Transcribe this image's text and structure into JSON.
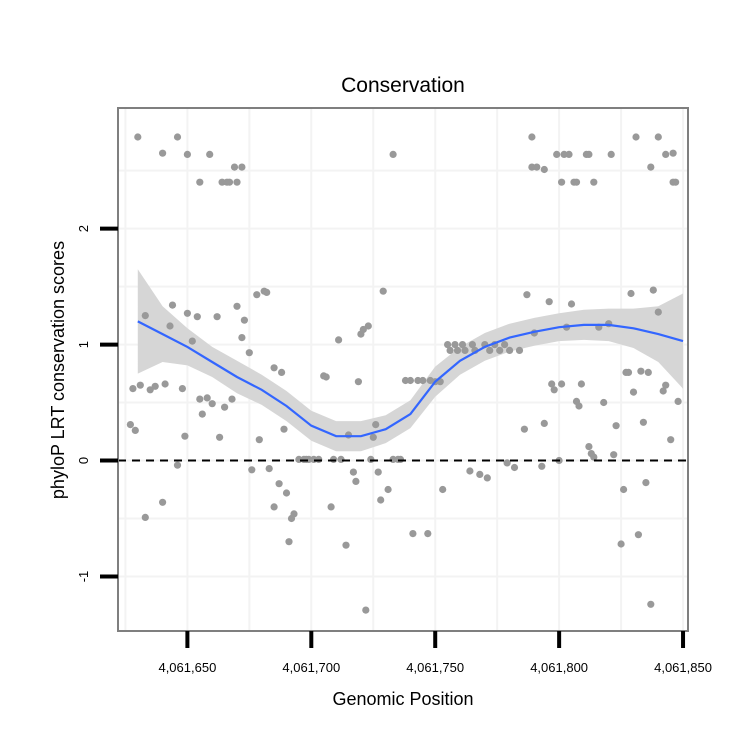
{
  "chart_data": {
    "type": "scatter",
    "title": "Conservation",
    "xlabel": "Genomic Position",
    "ylabel": "phyloP LRT conservation scores",
    "xlim": [
      4061622,
      4061852
    ],
    "ylim": [
      -1.47,
      3.04
    ],
    "x_ticks": [
      {
        "value": 4061650,
        "label": "4,061,650"
      },
      {
        "value": 4061700,
        "label": "4,061,700"
      },
      {
        "value": 4061750,
        "label": "4,061,750"
      },
      {
        "value": 4061800,
        "label": "4,061,800"
      },
      {
        "value": 4061850,
        "label": "4,061,850"
      }
    ],
    "y_ticks": [
      {
        "value": -1,
        "label": "-1"
      },
      {
        "value": 0,
        "label": "0"
      },
      {
        "value": 1,
        "label": "1"
      },
      {
        "value": 2,
        "label": "2"
      }
    ],
    "reference_line": {
      "y": 0,
      "style": "dashed"
    },
    "grid": true,
    "colors": {
      "points": "#999999",
      "smooth": "#3366ff",
      "ribbon": "#d6d6d6",
      "panel_border": "#7f7f7f",
      "grid": "#f3f3f3"
    },
    "points": [
      [
        4061630,
        2.79
      ],
      [
        4061640,
        2.65
      ],
      [
        4061646,
        2.79
      ],
      [
        4061650,
        2.64
      ],
      [
        4061655,
        2.4
      ],
      [
        4061659,
        2.64
      ],
      [
        4061664,
        2.4
      ],
      [
        4061666,
        2.4
      ],
      [
        4061667,
        2.4
      ],
      [
        4061669,
        2.53
      ],
      [
        4061670,
        2.4
      ],
      [
        4061672,
        2.53
      ],
      [
        4061733,
        2.64
      ],
      [
        4061789,
        2.79
      ],
      [
        4061789,
        2.53
      ],
      [
        4061791,
        2.53
      ],
      [
        4061794,
        2.51
      ],
      [
        4061799,
        2.64
      ],
      [
        4061801,
        2.4
      ],
      [
        4061802,
        2.64
      ],
      [
        4061804,
        2.64
      ],
      [
        4061806,
        2.4
      ],
      [
        4061807,
        2.4
      ],
      [
        4061811,
        2.64
      ],
      [
        4061812,
        2.64
      ],
      [
        4061814,
        2.4
      ],
      [
        4061821,
        2.64
      ],
      [
        4061831,
        2.79
      ],
      [
        4061837,
        2.53
      ],
      [
        4061840,
        2.79
      ],
      [
        4061843,
        2.64
      ],
      [
        4061846,
        2.4
      ],
      [
        4061847,
        2.4
      ],
      [
        4061627,
        0.31
      ],
      [
        4061628,
        0.62
      ],
      [
        4061629,
        0.26
      ],
      [
        4061631,
        0.65
      ],
      [
        4061633,
        -0.49
      ],
      [
        4061633,
        1.25
      ],
      [
        4061635,
        0.61
      ],
      [
        4061637,
        0.64
      ],
      [
        4061640,
        -0.36
      ],
      [
        4061641,
        0.66
      ],
      [
        4061643,
        1.16
      ],
      [
        4061644,
        1.34
      ],
      [
        4061646,
        -0.04
      ],
      [
        4061648,
        0.62
      ],
      [
        4061649,
        0.21
      ],
      [
        4061650,
        1.27
      ],
      [
        4061652,
        1.03
      ],
      [
        4061654,
        1.24
      ],
      [
        4061655,
        0.53
      ],
      [
        4061656,
        0.4
      ],
      [
        4061658,
        0.54
      ],
      [
        4061660,
        0.49
      ],
      [
        4061662,
        1.24
      ],
      [
        4061663,
        0.2
      ],
      [
        4061665,
        0.46
      ],
      [
        4061668,
        0.53
      ],
      [
        4061670,
        1.33
      ],
      [
        4061672,
        1.06
      ],
      [
        4061673,
        1.21
      ],
      [
        4061675,
        0.93
      ],
      [
        4061676,
        -0.08
      ],
      [
        4061678,
        1.43
      ],
      [
        4061679,
        0.18
      ],
      [
        4061681,
        1.46
      ],
      [
        4061682,
        1.45
      ],
      [
        4061683,
        -0.07
      ],
      [
        4061685,
        -0.4
      ],
      [
        4061685,
        0.8
      ],
      [
        4061687,
        -0.2
      ],
      [
        4061688,
        0.76
      ],
      [
        4061689,
        0.27
      ],
      [
        4061690,
        -0.28
      ],
      [
        4061691,
        -0.7
      ],
      [
        4061692,
        -0.5
      ],
      [
        4061693,
        -0.46
      ],
      [
        4061695,
        0.01
      ],
      [
        4061697,
        0.01
      ],
      [
        4061698,
        0.01
      ],
      [
        4061699,
        0.01
      ],
      [
        4061701,
        0.01
      ],
      [
        4061703,
        0.01
      ],
      [
        4061705,
        0.73
      ],
      [
        4061706,
        0.72
      ],
      [
        4061708,
        -0.4
      ],
      [
        4061709,
        0.01
      ],
      [
        4061711,
        1.04
      ],
      [
        4061712,
        0.01
      ],
      [
        4061714,
        -0.73
      ],
      [
        4061715,
        0.22
      ],
      [
        4061717,
        -0.1
      ],
      [
        4061718,
        -0.18
      ],
      [
        4061719,
        0.68
      ],
      [
        4061720,
        1.09
      ],
      [
        4061721,
        1.13
      ],
      [
        4061722,
        -1.29
      ],
      [
        4061723,
        1.16
      ],
      [
        4061724,
        0.01
      ],
      [
        4061725,
        0.2
      ],
      [
        4061726,
        0.31
      ],
      [
        4061727,
        -0.1
      ],
      [
        4061728,
        -0.34
      ],
      [
        4061729,
        1.46
      ],
      [
        4061731,
        -0.25
      ],
      [
        4061733,
        0.01
      ],
      [
        4061735,
        0.01
      ],
      [
        4061736,
        0.01
      ],
      [
        4061738,
        0.69
      ],
      [
        4061740,
        0.69
      ],
      [
        4061741,
        -0.63
      ],
      [
        4061743,
        0.69
      ],
      [
        4061745,
        0.69
      ],
      [
        4061747,
        -0.63
      ],
      [
        4061748,
        0.69
      ],
      [
        4061750,
        0.68
      ],
      [
        4061752,
        0.68
      ],
      [
        4061753,
        -0.25
      ],
      [
        4061755,
        1.0
      ],
      [
        4061756,
        0.95
      ],
      [
        4061758,
        1.0
      ],
      [
        4061759,
        0.95
      ],
      [
        4061761,
        1.0
      ],
      [
        4061762,
        0.95
      ],
      [
        4061764,
        -0.09
      ],
      [
        4061765,
        1.0
      ],
      [
        4061766,
        0.95
      ],
      [
        4061768,
        -0.12
      ],
      [
        4061770,
        1.0
      ],
      [
        4061771,
        -0.15
      ],
      [
        4061772,
        0.95
      ],
      [
        4061774,
        1.0
      ],
      [
        4061776,
        0.95
      ],
      [
        4061778,
        1.0
      ],
      [
        4061779,
        -0.02
      ],
      [
        4061780,
        0.95
      ],
      [
        4061782,
        -0.06
      ],
      [
        4061784,
        0.95
      ],
      [
        4061786,
        0.27
      ],
      [
        4061787,
        1.43
      ],
      [
        4061790,
        1.1
      ],
      [
        4061793,
        -0.05
      ],
      [
        4061794,
        0.32
      ],
      [
        4061796,
        1.37
      ],
      [
        4061797,
        0.66
      ],
      [
        4061798,
        0.61
      ],
      [
        4061800,
        0.0
      ],
      [
        4061801,
        0.66
      ],
      [
        4061803,
        1.15
      ],
      [
        4061805,
        1.35
      ],
      [
        4061807,
        0.51
      ],
      [
        4061808,
        0.47
      ],
      [
        4061809,
        0.66
      ],
      [
        4061812,
        0.12
      ],
      [
        4061813,
        0.06
      ],
      [
        4061814,
        0.03
      ],
      [
        4061816,
        1.15
      ],
      [
        4061818,
        0.5
      ],
      [
        4061820,
        1.18
      ],
      [
        4061822,
        0.05
      ],
      [
        4061823,
        0.3
      ],
      [
        4061825,
        -0.72
      ],
      [
        4061826,
        -0.25
      ],
      [
        4061827,
        0.76
      ],
      [
        4061828,
        0.76
      ],
      [
        4061829,
        1.44
      ],
      [
        4061830,
        0.59
      ],
      [
        4061832,
        -0.64
      ],
      [
        4061833,
        0.77
      ],
      [
        4061834,
        0.33
      ],
      [
        4061835,
        -0.19
      ],
      [
        4061836,
        0.76
      ],
      [
        4061837,
        -1.24
      ],
      [
        4061838,
        1.47
      ],
      [
        4061840,
        1.28
      ],
      [
        4061842,
        0.6
      ],
      [
        4061843,
        0.65
      ],
      [
        4061845,
        0.18
      ],
      [
        4061848,
        0.51
      ],
      [
        4061846,
        2.65
      ]
    ],
    "smooth": [
      {
        "x": 4061630,
        "y": 1.2,
        "lo": 0.75,
        "hi": 1.65
      },
      {
        "x": 4061640,
        "y": 1.09,
        "lo": 0.85,
        "hi": 1.33
      },
      {
        "x": 4061650,
        "y": 0.98,
        "lo": 0.82,
        "hi": 1.14
      },
      {
        "x": 4061660,
        "y": 0.85,
        "lo": 0.72,
        "hi": 0.98
      },
      {
        "x": 4061670,
        "y": 0.72,
        "lo": 0.58,
        "hi": 0.86
      },
      {
        "x": 4061680,
        "y": 0.61,
        "lo": 0.48,
        "hi": 0.74
      },
      {
        "x": 4061690,
        "y": 0.47,
        "lo": 0.34,
        "hi": 0.6
      },
      {
        "x": 4061700,
        "y": 0.3,
        "lo": 0.17,
        "hi": 0.43
      },
      {
        "x": 4061710,
        "y": 0.21,
        "lo": 0.08,
        "hi": 0.34
      },
      {
        "x": 4061720,
        "y": 0.21,
        "lo": 0.08,
        "hi": 0.34
      },
      {
        "x": 4061730,
        "y": 0.27,
        "lo": 0.15,
        "hi": 0.39
      },
      {
        "x": 4061740,
        "y": 0.4,
        "lo": 0.28,
        "hi": 0.52
      },
      {
        "x": 4061750,
        "y": 0.68,
        "lo": 0.55,
        "hi": 0.81
      },
      {
        "x": 4061760,
        "y": 0.86,
        "lo": 0.74,
        "hi": 0.98
      },
      {
        "x": 4061770,
        "y": 0.98,
        "lo": 0.86,
        "hi": 1.1
      },
      {
        "x": 4061780,
        "y": 1.06,
        "lo": 0.94,
        "hi": 1.18
      },
      {
        "x": 4061790,
        "y": 1.11,
        "lo": 0.99,
        "hi": 1.23
      },
      {
        "x": 4061800,
        "y": 1.15,
        "lo": 1.03,
        "hi": 1.27
      },
      {
        "x": 4061810,
        "y": 1.17,
        "lo": 1.04,
        "hi": 1.3
      },
      {
        "x": 4061820,
        "y": 1.17,
        "lo": 1.03,
        "hi": 1.31
      },
      {
        "x": 4061830,
        "y": 1.14,
        "lo": 0.97,
        "hi": 1.31
      },
      {
        "x": 4061840,
        "y": 1.09,
        "lo": 0.85,
        "hi": 1.33
      },
      {
        "x": 4061850,
        "y": 1.03,
        "lo": 0.62,
        "hi": 1.44
      }
    ]
  }
}
